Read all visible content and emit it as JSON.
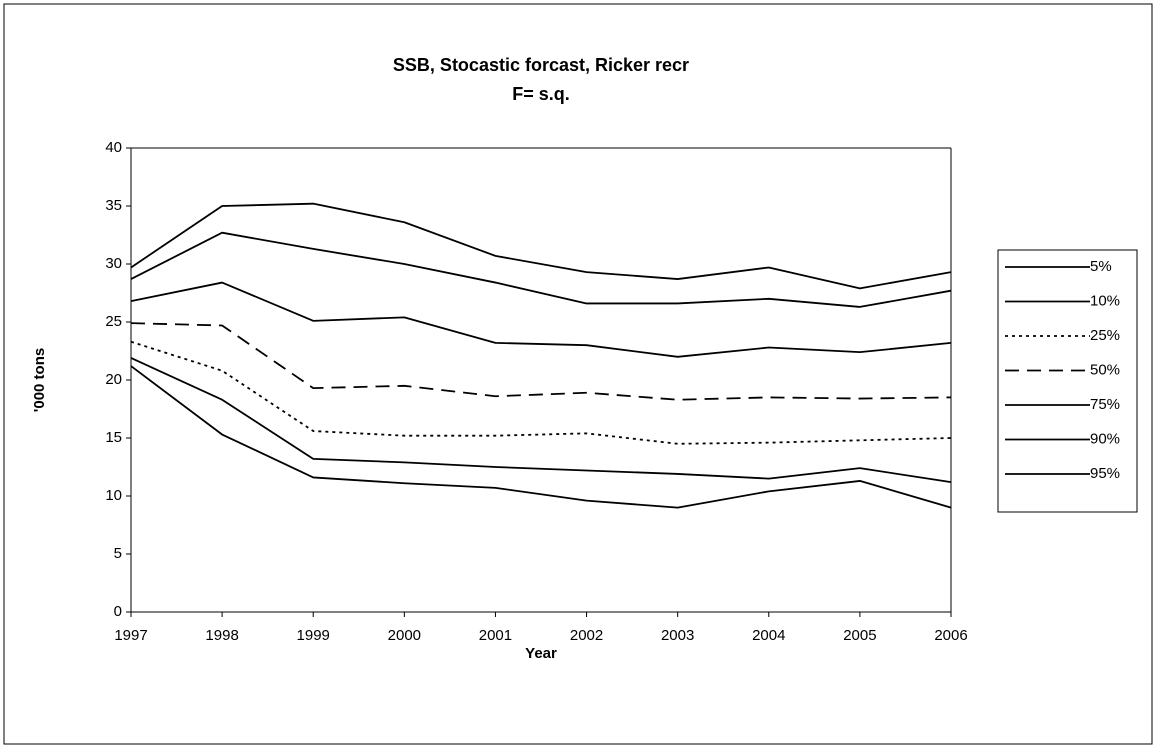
{
  "chart_data": {
    "type": "line",
    "title": "SSB, Stocastic forcast, Ricker recr",
    "subtitle": "F= s.q.",
    "x_label": "Year",
    "y_label": "'000 tons",
    "categories": [
      "1997",
      "1998",
      "1999",
      "2000",
      "2001",
      "2002",
      "2003",
      "2004",
      "2005",
      "2006"
    ],
    "ylim": [
      0,
      40
    ],
    "yticks": [
      0,
      5,
      10,
      15,
      20,
      25,
      30,
      35,
      40
    ],
    "grid": false,
    "legend": "right",
    "series": [
      {
        "name": "5%",
        "color": "#000000",
        "values": [
          21.2,
          15.3,
          11.6,
          11.1,
          10.7,
          9.6,
          9.0,
          10.4,
          11.3,
          9.0
        ]
      },
      {
        "name": "10%",
        "color": "#000000",
        "values": [
          21.9,
          18.3,
          13.2,
          12.9,
          12.5,
          12.2,
          11.9,
          11.5,
          12.4,
          11.2
        ]
      },
      {
        "name": "25%",
        "color": "#000000",
        "dash": "dotted",
        "values": [
          23.3,
          20.8,
          15.6,
          15.2,
          15.2,
          15.4,
          14.5,
          14.6,
          14.8,
          15.0
        ]
      },
      {
        "name": "50%",
        "color": "#000000",
        "dash": "dashed",
        "values": [
          24.9,
          24.7,
          19.3,
          19.5,
          18.6,
          18.9,
          18.3,
          18.5,
          18.4,
          18.5
        ]
      },
      {
        "name": "75%",
        "color": "#000000",
        "values": [
          26.8,
          28.4,
          25.1,
          25.4,
          23.2,
          23.0,
          22.0,
          22.8,
          22.4,
          23.2
        ]
      },
      {
        "name": "90%",
        "color": "#000000",
        "values": [
          28.7,
          32.7,
          31.3,
          30.0,
          28.4,
          26.6,
          26.6,
          27.0,
          26.3,
          27.7
        ]
      },
      {
        "name": "95%",
        "color": "#000000",
        "values": [
          29.7,
          35.0,
          35.2,
          33.6,
          30.7,
          29.3,
          28.7,
          29.7,
          27.9,
          29.3
        ]
      }
    ]
  }
}
